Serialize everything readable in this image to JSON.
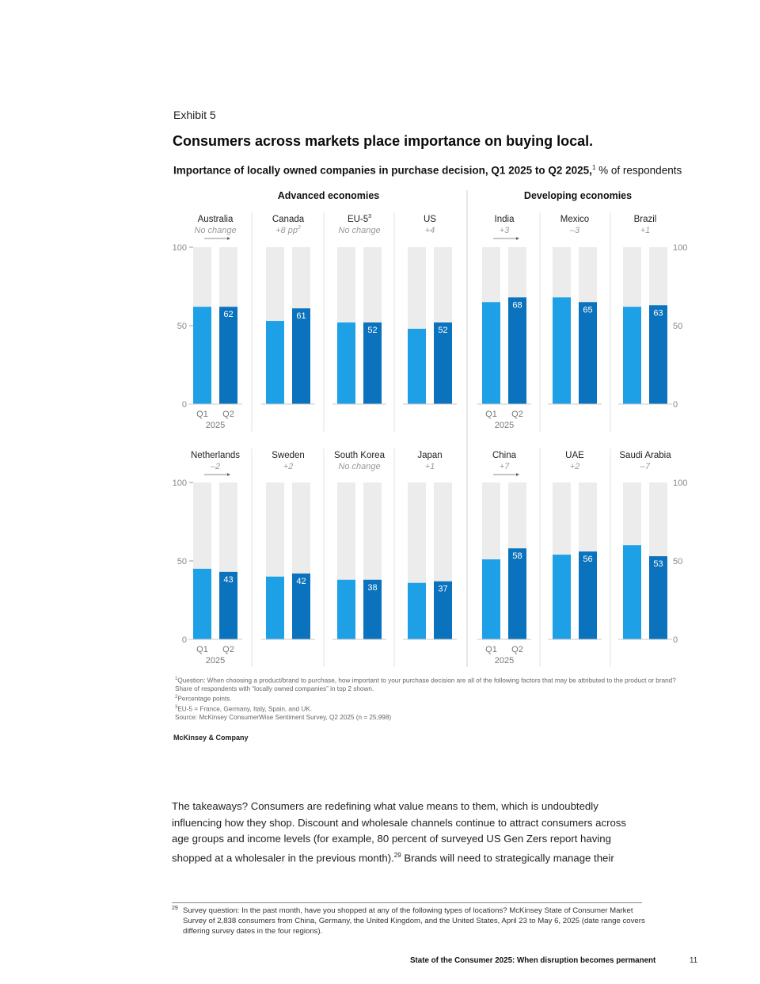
{
  "exhibit_label": "Exhibit 5",
  "title": "Consumers across markets place importance on buying local.",
  "subtitle_bold": "Importance of locally owned companies in purchase decision, Q1 2025 to Q2 2025,",
  "subtitle_sup": "1",
  "subtitle_rest": " % of respondents",
  "chart_data": {
    "type": "bar",
    "ylim": [
      0,
      100
    ],
    "yticks": [
      "0",
      "50",
      "100"
    ],
    "quarter_labels": [
      "Q1",
      "Q2"
    ],
    "year_label": "2025",
    "groups": [
      {
        "label": "Advanced economies"
      },
      {
        "label": "Developing economies"
      }
    ],
    "panels": [
      {
        "country": "Australia",
        "change": "No change",
        "q1": 62,
        "q2": 62,
        "q2_label": "62"
      },
      {
        "country": "Canada",
        "change": "+8 pp",
        "change_sup": "2",
        "q1": 53,
        "q2": 61,
        "q2_label": "61"
      },
      {
        "country": "EU-5",
        "country_sup": "3",
        "change": "No change",
        "q1": 52,
        "q2": 52,
        "q2_label": "52"
      },
      {
        "country": "US",
        "change": "+4",
        "q1": 48,
        "q2": 52,
        "q2_label": "52"
      },
      {
        "country": "India",
        "change": "+3",
        "q1": 65,
        "q2": 68,
        "q2_label": "68"
      },
      {
        "country": "Mexico",
        "change": "–3",
        "q1": 68,
        "q2": 65,
        "q2_label": "65"
      },
      {
        "country": "Brazil",
        "change": "+1",
        "q1": 62,
        "q2": 63,
        "q2_label": "63"
      },
      {
        "country": "Netherlands",
        "change": "–2",
        "q1": 45,
        "q2": 43,
        "q2_label": "43"
      },
      {
        "country": "Sweden",
        "change": "+2",
        "q1": 40,
        "q2": 42,
        "q2_label": "42"
      },
      {
        "country": "South Korea",
        "change": "No change",
        "q1": 38,
        "q2": 38,
        "q2_label": "38"
      },
      {
        "country": "Japan",
        "change": "+1",
        "q1": 36,
        "q2": 37,
        "q2_label": "37"
      },
      {
        "country": "China",
        "change": "+7",
        "q1": 51,
        "q2": 58,
        "q2_label": "58"
      },
      {
        "country": "UAE",
        "change": "+2",
        "q1": 54,
        "q2": 56,
        "q2_label": "56"
      },
      {
        "country": "Saudi Arabia",
        "change": "–7",
        "q1": 60,
        "q2": 53,
        "q2_label": "53"
      }
    ],
    "colors": {
      "q1": "#1ea0e6",
      "q2": "#0b72bd",
      "track": "#ececec",
      "axis": "#999999"
    }
  },
  "footnotes": {
    "n1_sup": "1",
    "n1": "Question: When choosing a product/brand to purchase, how important to your purchase decision are all of the following factors that may be attributed to the product or brand? Share of respondents with “locally owned companies” in top 2 shown.",
    "n2_sup": "2",
    "n2": "Percentage points.",
    "n3_sup": "3",
    "n3": "EU-5 = France, Germany, Italy, Spain, and UK.",
    "source": "Source: McKinsey ConsumerWise Sentiment Survey, Q2 2025 (n = 25,998)"
  },
  "brand": "McKinsey & Company",
  "body": {
    "text": "The takeaways? Consumers are redefining what value means to them, which is undoubtedly influencing how they shop. Discount and wholesale channels continue to attract consumers across age groups and income levels (for example, 80 percent of surveyed US Gen Zers report having shopped at a wholesaler in the previous month).",
    "sup": "29",
    "text_after": " Brands will need to strategically manage their"
  },
  "page_footnote": {
    "num": "29",
    "text": "Survey question: In the past month, have you shopped at any of the following types of locations? McKinsey State of Consumer Market Survey of 2,838 consumers from China, Germany, the United Kingdom, and the United States, April 23 to May 6, 2025 (date range covers differing survey dates in the four regions)."
  },
  "footer": {
    "title": "State of the Consumer 2025: When disruption becomes permanent",
    "page": "11"
  }
}
